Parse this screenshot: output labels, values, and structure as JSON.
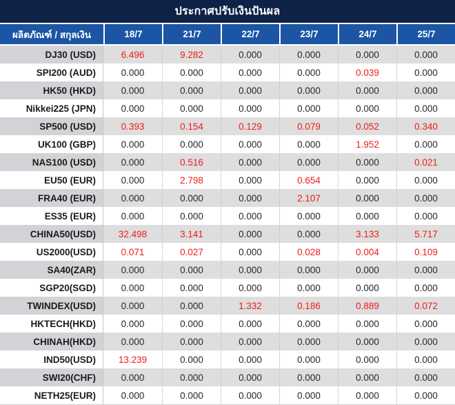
{
  "title": "ประกาศปรับเงินปันผล",
  "table": {
    "product_header": "ผลิตภัณฑ์ / สกุลเงิน",
    "date_headers": [
      "18/7",
      "21/7",
      "22/7",
      "23/7",
      "24/7",
      "25/7"
    ],
    "zero_value": "0.000",
    "rows": [
      {
        "label": "DJ30 (USD)",
        "values": [
          "6.496",
          "9.282",
          "0.000",
          "0.000",
          "0.000",
          "0.000"
        ]
      },
      {
        "label": "SPI200 (AUD)",
        "values": [
          "0.000",
          "0.000",
          "0.000",
          "0.000",
          "0.039",
          "0.000"
        ]
      },
      {
        "label": "HK50 (HKD)",
        "values": [
          "0.000",
          "0.000",
          "0.000",
          "0.000",
          "0.000",
          "0.000"
        ]
      },
      {
        "label": "Nikkei225 (JPN)",
        "values": [
          "0.000",
          "0.000",
          "0.000",
          "0.000",
          "0.000",
          "0.000"
        ]
      },
      {
        "label": "SP500 (USD)",
        "values": [
          "0.393",
          "0.154",
          "0.129",
          "0.079",
          "0.052",
          "0.340"
        ]
      },
      {
        "label": "UK100 (GBP)",
        "values": [
          "0.000",
          "0.000",
          "0.000",
          "0.000",
          "1.952",
          "0.000"
        ]
      },
      {
        "label": "NAS100 (USD)",
        "values": [
          "0.000",
          "0.516",
          "0.000",
          "0.000",
          "0.000",
          "0.021"
        ]
      },
      {
        "label": "EU50 (EUR)",
        "values": [
          "0.000",
          "2.798",
          "0.000",
          "0.654",
          "0.000",
          "0.000"
        ]
      },
      {
        "label": "FRA40 (EUR)",
        "values": [
          "0.000",
          "0.000",
          "0.000",
          "2.107",
          "0.000",
          "0.000"
        ]
      },
      {
        "label": "ES35 (EUR)",
        "values": [
          "0.000",
          "0.000",
          "0.000",
          "0.000",
          "0.000",
          "0.000"
        ]
      },
      {
        "label": "CHINA50(USD)",
        "values": [
          "32.498",
          "3.141",
          "0.000",
          "0.000",
          "3.133",
          "5.717"
        ]
      },
      {
        "label": "US2000(USD)",
        "values": [
          "0.071",
          "0.027",
          "0.000",
          "0.028",
          "0.004",
          "0.109"
        ]
      },
      {
        "label": "SA40(ZAR)",
        "values": [
          "0.000",
          "0.000",
          "0.000",
          "0.000",
          "0.000",
          "0.000"
        ]
      },
      {
        "label": "SGP20(SGD)",
        "values": [
          "0.000",
          "0.000",
          "0.000",
          "0.000",
          "0.000",
          "0.000"
        ]
      },
      {
        "label": "TWINDEX(USD)",
        "values": [
          "0.000",
          "0.000",
          "1.332",
          "0.186",
          "0.889",
          "0.072"
        ]
      },
      {
        "label": "HKTECH(HKD)",
        "values": [
          "0.000",
          "0.000",
          "0.000",
          "0.000",
          "0.000",
          "0.000"
        ]
      },
      {
        "label": "CHINAH(HKD)",
        "values": [
          "0.000",
          "0.000",
          "0.000",
          "0.000",
          "0.000",
          "0.000"
        ]
      },
      {
        "label": "IND50(USD)",
        "values": [
          "13.239",
          "0.000",
          "0.000",
          "0.000",
          "0.000",
          "0.000"
        ]
      },
      {
        "label": "SWI20(CHF)",
        "values": [
          "0.000",
          "0.000",
          "0.000",
          "0.000",
          "0.000",
          "0.000"
        ]
      },
      {
        "label": "NETH25(EUR)",
        "values": [
          "0.000",
          "0.000",
          "0.000",
          "0.000",
          "0.000",
          "0.000"
        ]
      }
    ]
  },
  "colors": {
    "title_bg": "#0e2247",
    "header_bg": "#1b55a4",
    "stripe_bg": "#dedede",
    "highlight_text": "#ed1c1a",
    "normal_text": "#262626"
  }
}
